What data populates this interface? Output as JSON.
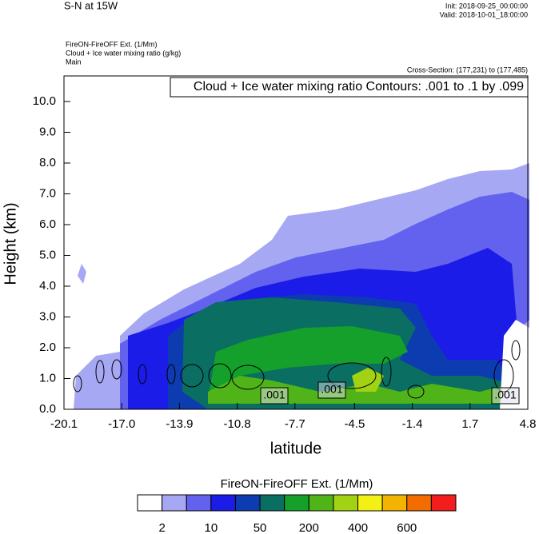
{
  "chart_data": {
    "type": "contour",
    "title": "S-N at 15W",
    "init": "Init: 2018-09-25_00:00:00",
    "valid": "Valid: 2018-10-01_18:00:00",
    "field_name": "FireON-FireOFF Ext.   (1/Mm)",
    "contour_name": "Cloud + Ice water mixing ratio   (g/kg)",
    "domain": "Main",
    "cross_section": "Cross-Section: (177,231) to (177,485)",
    "contour_info": "Cloud + Ice water mixing ratio Contours: .001 to .1 by .099",
    "contour_labels": [
      ".001",
      ".001",
      ".001"
    ],
    "xlabel": "latitude",
    "ylabel": "Height (km)",
    "xlim": [
      -20.1,
      4.8
    ],
    "ylim": [
      0,
      10.83
    ],
    "xticks": [
      -20.1,
      {
        "value": -17,
        "label": "-17.0"
      },
      -13.9,
      -10.8,
      -7.7,
      -4.5,
      -1.4,
      1.7,
      4.8
    ],
    "yticks": [
      {
        "value": 0,
        "label": "0.0"
      },
      {
        "value": 1,
        "label": "1.0"
      },
      {
        "value": 2,
        "label": "2.0"
      },
      {
        "value": 3,
        "label": "3.0"
      },
      {
        "value": 4,
        "label": "4.0"
      },
      {
        "value": 5,
        "label": "5.0"
      },
      {
        "value": 6,
        "label": "6.0"
      },
      {
        "value": 7,
        "label": "7.0"
      },
      {
        "value": 8,
        "label": "8.0"
      },
      {
        "value": 9,
        "label": "9.0"
      },
      {
        "value": 10,
        "label": "10.0"
      }
    ],
    "colorbar": {
      "title": "FireON-FireOFF Ext.  (1/Mm)",
      "colors": [
        "#ffffff",
        "#a6a8f4",
        "#6262ee",
        "#1c1ce8",
        "#0c3cb0",
        "#0a6e62",
        "#14a02a",
        "#50b418",
        "#a2d214",
        "#f2f014",
        "#f2b400",
        "#f26c00",
        "#f21e1e"
      ],
      "labels": [
        2,
        10,
        50,
        200,
        400,
        600
      ]
    }
  }
}
